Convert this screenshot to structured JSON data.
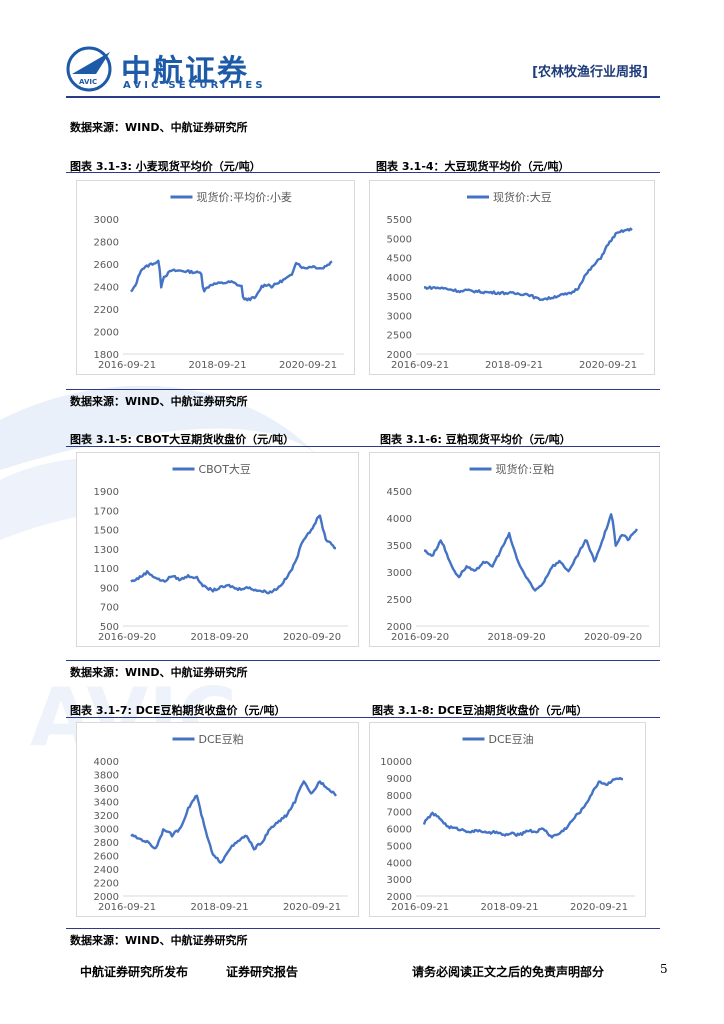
{
  "header": {
    "logo_cn": "中航证券",
    "logo_en": "AVIC SECURITIES",
    "logo_badge": "AVIC",
    "report_type": "[农林牧渔行业周报]"
  },
  "sources": {
    "s1": "数据来源：WIND、中航证券研究所",
    "s2": "数据来源：WIND、中航证券研究所",
    "s3": "数据来源：WIND、中航证券研究所",
    "s4": "数据来源：WIND、中航证券研究所"
  },
  "figures": {
    "f1": "图表 3.1-3:  小麦现货平均价（元/吨）",
    "f2": "图表 3.1-4：大豆现货平均价（元/吨）",
    "f3": "图表 3.1-5:  CBOT大豆期货收盘价（元/吨）",
    "f4": "图表 3.1-6:  豆粕现货平均价（元/吨）",
    "f5": "图表 3.1-7:  DCE豆粕期货收盘价（元/吨）",
    "f6": "图表 3.1-8:  DCE豆油期货收盘价（元/吨）"
  },
  "footer": {
    "publisher": "中航证券研究所发布",
    "doc_type": "证券研究报告",
    "disclaimer": "请务必阅读正文之后的免责声明部分",
    "page": "5"
  },
  "colors": {
    "line": "#4472c4",
    "brand": "#1d5aa8",
    "rule": "#2a3b8a"
  },
  "chart_data": [
    {
      "type": "line",
      "series": [
        {
          "name": "现货价:平均价:小麦",
          "x": [
            0,
            0.02,
            0.05,
            0.1,
            0.14,
            0.15,
            0.16,
            0.2,
            0.25,
            0.35,
            0.36,
            0.4,
            0.5,
            0.55,
            0.56,
            0.62,
            0.65,
            0.68,
            0.7,
            0.75,
            0.8,
            0.82,
            0.86,
            0.9,
            0.95,
            1
          ],
          "values": [
            2350,
            2400,
            2550,
            2600,
            2620,
            2400,
            2480,
            2540,
            2540,
            2520,
            2360,
            2420,
            2440,
            2400,
            2280,
            2300,
            2400,
            2420,
            2400,
            2450,
            2500,
            2620,
            2560,
            2580,
            2560,
            2620
          ]
        }
      ],
      "ylim": [
        1800,
        3000
      ],
      "yticks": [
        "3000",
        "2800",
        "2600",
        "2400",
        "2200",
        "2000",
        "1800"
      ],
      "xticks": [
        "2016-09-21",
        "2018-09-21",
        "2020-09-21"
      ],
      "legend": "top"
    },
    {
      "type": "line",
      "series": [
        {
          "name": "现货价:大豆",
          "x": [
            0,
            0.05,
            0.1,
            0.18,
            0.2,
            0.3,
            0.4,
            0.5,
            0.55,
            0.6,
            0.65,
            0.7,
            0.74,
            0.77,
            0.8,
            0.85,
            0.88,
            0.92,
            0.96,
            1
          ],
          "values": [
            3720,
            3720,
            3700,
            3620,
            3650,
            3600,
            3580,
            3550,
            3420,
            3440,
            3520,
            3560,
            3700,
            4000,
            4200,
            4500,
            4800,
            5100,
            5200,
            5230
          ]
        }
      ],
      "ylim": [
        2000,
        5500
      ],
      "yticks": [
        "5500",
        "5000",
        "4500",
        "4000",
        "3500",
        "3000",
        "2500",
        "2000"
      ],
      "xticks": [
        "2016-09-21",
        "2018-09-21",
        "2020-09-21"
      ],
      "legend": "top"
    },
    {
      "type": "line",
      "series": [
        {
          "name": "CBOT大豆",
          "x": [
            0,
            0.04,
            0.08,
            0.12,
            0.16,
            0.2,
            0.24,
            0.28,
            0.32,
            0.36,
            0.4,
            0.44,
            0.48,
            0.52,
            0.56,
            0.6,
            0.64,
            0.68,
            0.72,
            0.76,
            0.8,
            0.84,
            0.88,
            0.92,
            0.95,
            0.98,
            1
          ],
          "values": [
            960,
            1000,
            1060,
            1000,
            960,
            1020,
            980,
            1020,
            1000,
            900,
            870,
            900,
            920,
            880,
            900,
            880,
            860,
            850,
            900,
            1000,
            1150,
            1400,
            1500,
            1650,
            1400,
            1350,
            1300
          ]
        }
      ],
      "ylim": [
        500,
        1900
      ],
      "yticks": [
        "1900",
        "1700",
        "1500",
        "1300",
        "1100",
        "900",
        "700",
        "500"
      ],
      "xticks": [
        "2016-09-20",
        "2018-09-20",
        "2020-09-20"
      ],
      "legend": "top"
    },
    {
      "type": "line",
      "series": [
        {
          "name": "现货价:豆粕",
          "x": [
            0,
            0.04,
            0.08,
            0.12,
            0.16,
            0.2,
            0.24,
            0.28,
            0.32,
            0.36,
            0.4,
            0.44,
            0.48,
            0.52,
            0.56,
            0.6,
            0.64,
            0.68,
            0.72,
            0.76,
            0.8,
            0.84,
            0.88,
            0.9,
            0.93,
            0.96,
            1
          ],
          "values": [
            3400,
            3300,
            3600,
            3200,
            2900,
            3100,
            3000,
            3200,
            3100,
            3400,
            3700,
            3200,
            2900,
            2650,
            2800,
            3100,
            3200,
            3000,
            3300,
            3600,
            3200,
            3600,
            4100,
            3500,
            3700,
            3600,
            3800
          ]
        }
      ],
      "ylim": [
        2000,
        4500
      ],
      "yticks": [
        "4500",
        "4000",
        "3500",
        "3000",
        "2500",
        "2000"
      ],
      "xticks": [
        "2016-09-20",
        "2018-09-20",
        "2020-09-20"
      ],
      "legend": "top"
    },
    {
      "type": "line",
      "series": [
        {
          "name": "DCE豆粕",
          "x": [
            0,
            0.04,
            0.08,
            0.12,
            0.16,
            0.2,
            0.24,
            0.28,
            0.32,
            0.36,
            0.4,
            0.44,
            0.48,
            0.52,
            0.56,
            0.6,
            0.64,
            0.68,
            0.72,
            0.76,
            0.8,
            0.84,
            0.88,
            0.92,
            0.96,
            1
          ],
          "values": [
            2900,
            2850,
            2800,
            2700,
            3000,
            2900,
            3000,
            3300,
            3500,
            3000,
            2600,
            2500,
            2700,
            2800,
            2900,
            2700,
            2800,
            3000,
            3100,
            3200,
            3400,
            3700,
            3500,
            3700,
            3600,
            3500
          ]
        }
      ],
      "ylim": [
        2000,
        4000
      ],
      "yticks": [
        "4000",
        "3800",
        "3600",
        "3400",
        "3200",
        "3000",
        "2800",
        "2600",
        "2400",
        "2200",
        "2000"
      ],
      "xticks": [
        "2016-09-21",
        "2018-09-21",
        "2020-09-21"
      ],
      "legend": "top"
    },
    {
      "type": "line",
      "series": [
        {
          "name": "DCE豆油",
          "x": [
            0,
            0.04,
            0.08,
            0.12,
            0.16,
            0.2,
            0.24,
            0.28,
            0.32,
            0.36,
            0.4,
            0.44,
            0.48,
            0.52,
            0.56,
            0.6,
            0.64,
            0.68,
            0.72,
            0.76,
            0.8,
            0.84,
            0.88,
            0.92,
            0.96,
            1
          ],
          "values": [
            6300,
            6900,
            6600,
            6100,
            6000,
            5900,
            5800,
            5900,
            5700,
            5800,
            5600,
            5700,
            5600,
            5900,
            5800,
            6000,
            5500,
            5700,
            6100,
            6700,
            7200,
            8000,
            8800,
            8600,
            9000,
            8900
          ]
        }
      ],
      "ylim": [
        2000,
        10000
      ],
      "yticks": [
        "10000",
        "9000",
        "8000",
        "7000",
        "6000",
        "5000",
        "4000",
        "3000",
        "2000"
      ],
      "xticks": [
        "2016-09-21",
        "2018-09-21",
        "2020-09-21"
      ],
      "legend": "top"
    }
  ]
}
